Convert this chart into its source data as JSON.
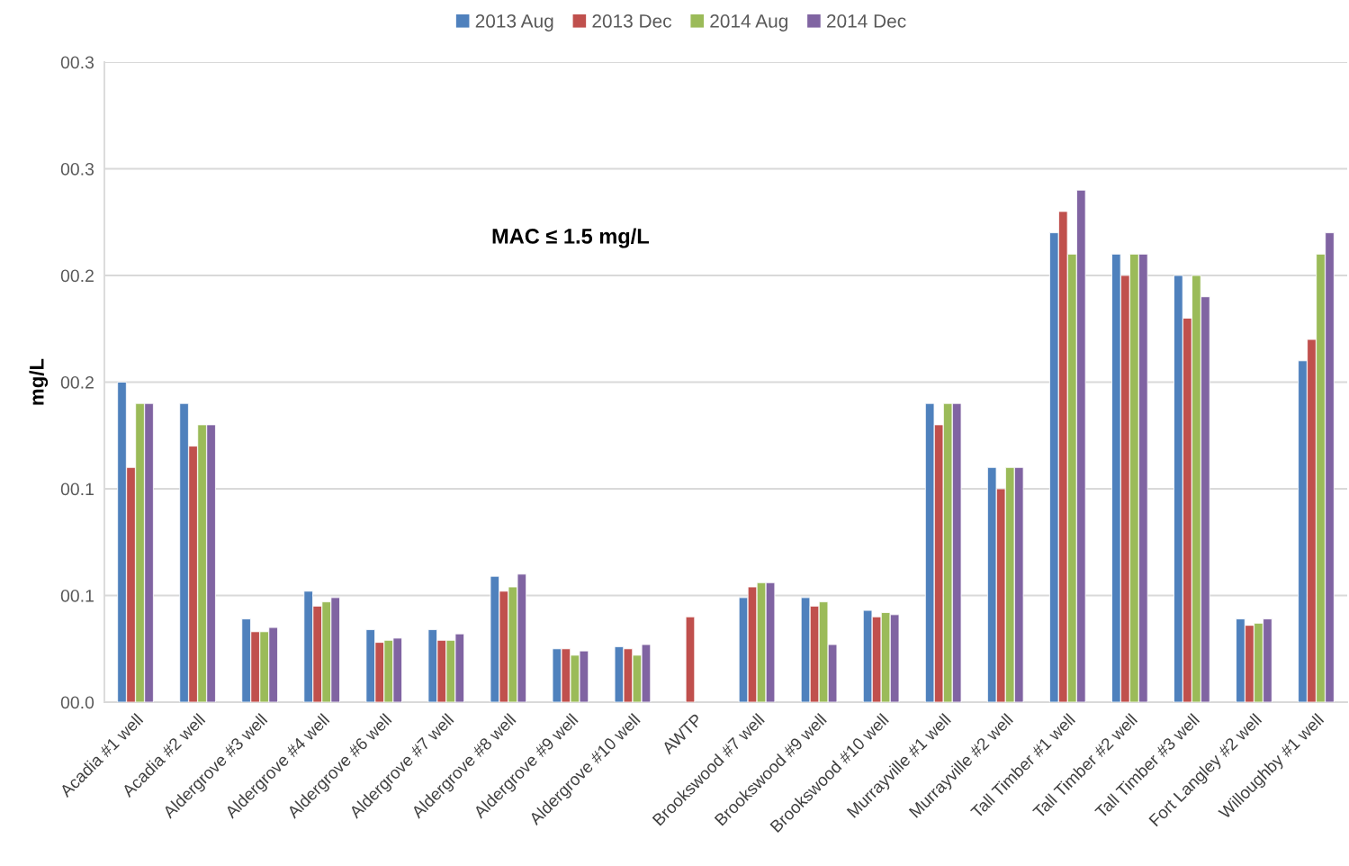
{
  "chart_data": {
    "type": "bar",
    "categories": [
      "Acadia #1 well",
      "Acadia #2 well",
      "Aldergrove #3 well",
      "Aldergrove #4 well",
      "Aldergrove #6 well",
      "Aldergrove #7 well",
      "Aldergrove #8 well",
      "Aldergrove #9 well",
      "Aldergrove #10 well",
      "AWTP",
      "Brookswood #7 well",
      "Brookswood #9 well",
      "Brookswood #10 well",
      "Murrayville #1 well",
      "Murrayville #2 well",
      "Tall Timber #1 well",
      "Tall Timber #2 well",
      "Tall Timber #3 well",
      "Fort Langley #2 well",
      "Willoughby #1 well"
    ],
    "series": [
      {
        "name": "2013 Aug",
        "color": "#4f81bd",
        "values": [
          0.15,
          0.14,
          0.039,
          0.052,
          0.034,
          0.034,
          0.059,
          0.025,
          0.026,
          null,
          0.049,
          0.049,
          0.043,
          0.14,
          0.11,
          0.22,
          0.21,
          0.2,
          0.039,
          0.16
        ]
      },
      {
        "name": "2013 Dec",
        "color": "#c0504d",
        "values": [
          0.11,
          0.12,
          0.033,
          0.045,
          0.028,
          0.029,
          0.052,
          0.025,
          0.025,
          0.04,
          0.054,
          0.045,
          0.04,
          0.13,
          0.1,
          0.23,
          0.2,
          0.18,
          0.036,
          0.17
        ]
      },
      {
        "name": "2014 Aug",
        "color": "#9bbb59",
        "values": [
          0.14,
          0.13,
          0.033,
          0.047,
          0.029,
          0.029,
          0.054,
          0.022,
          0.022,
          null,
          0.056,
          0.047,
          0.042,
          0.14,
          0.11,
          0.21,
          0.21,
          0.2,
          0.037,
          0.21
        ]
      },
      {
        "name": "2014 Dec",
        "color": "#8064a2",
        "values": [
          0.14,
          0.13,
          0.035,
          0.049,
          0.03,
          0.032,
          0.06,
          0.024,
          0.027,
          null,
          0.056,
          0.027,
          0.041,
          0.14,
          0.11,
          0.24,
          0.21,
          0.19,
          0.039,
          0.22
        ]
      }
    ],
    "ylabel": "mg/L",
    "ylim": [
      0,
      0.3
    ],
    "yticks": [
      {
        "value": 0,
        "label": "00.0"
      },
      {
        "value": 0.05,
        "label": "00.1"
      },
      {
        "value": 0.1,
        "label": "00.1"
      },
      {
        "value": 0.15,
        "label": "00.2"
      },
      {
        "value": 0.2,
        "label": "00.2"
      },
      {
        "value": 0.25,
        "label": "00.3"
      },
      {
        "value": 0.3,
        "label": "00.3"
      }
    ],
    "annotations": [
      "MAC ≤ 1.5 mg/L"
    ],
    "grid": "y",
    "legend": "top"
  }
}
